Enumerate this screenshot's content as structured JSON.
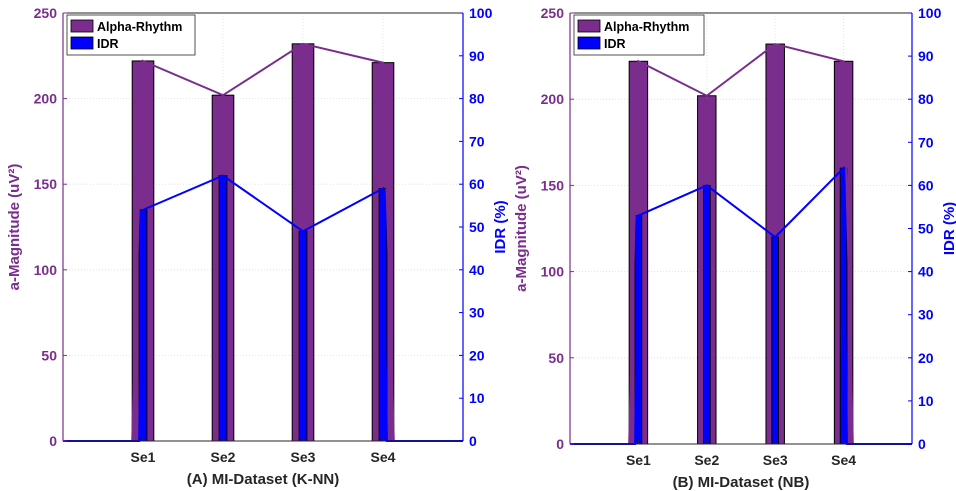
{
  "colors": {
    "alpha": "#7B2D8E",
    "idr": "#0000FF",
    "left_axis": "#7B2D8E",
    "right_axis": "#0000FF"
  },
  "chart_data": [
    {
      "type": "bar",
      "title": "(A) MI-Dataset (K-NN)",
      "categories": [
        "Se1",
        "Se2",
        "Se3",
        "Se4"
      ],
      "ylabel_left": "a-Magnitude (uV²)",
      "ylabel_right": "IDR (%)",
      "ylim_left": [
        0,
        250
      ],
      "ylim_right": [
        0,
        100
      ],
      "yticks_left": [
        0,
        50,
        100,
        150,
        200,
        250
      ],
      "yticks_right": [
        0,
        10,
        20,
        30,
        40,
        50,
        60,
        70,
        80,
        90,
        100
      ],
      "legend_position": "top-left",
      "grid": true,
      "series": [
        {
          "name": "Alpha-Rhythm",
          "axis": "left",
          "values": [
            222,
            202,
            232,
            221
          ]
        },
        {
          "name": "IDR",
          "axis": "right",
          "values": [
            54,
            62,
            49,
            59
          ]
        }
      ]
    },
    {
      "type": "bar",
      "title": "(B) MI-Dataset (NB)",
      "categories": [
        "Se1",
        "Se2",
        "Se3",
        "Se4"
      ],
      "ylabel_left": "a-Magnitude (uV²)",
      "ylabel_right": "IDR (%)",
      "ylim_left": [
        0,
        250
      ],
      "ylim_right": [
        0,
        100
      ],
      "yticks_left": [
        0,
        50,
        100,
        150,
        200,
        250
      ],
      "yticks_right": [
        0,
        10,
        20,
        30,
        40,
        50,
        60,
        70,
        80,
        90,
        100
      ],
      "legend_position": "top-left",
      "grid": true,
      "series": [
        {
          "name": "Alpha-Rhythm",
          "axis": "left",
          "values": [
            222,
            202,
            232,
            222
          ]
        },
        {
          "name": "IDR",
          "axis": "right",
          "values": [
            53,
            60,
            48,
            64
          ]
        }
      ]
    }
  ]
}
